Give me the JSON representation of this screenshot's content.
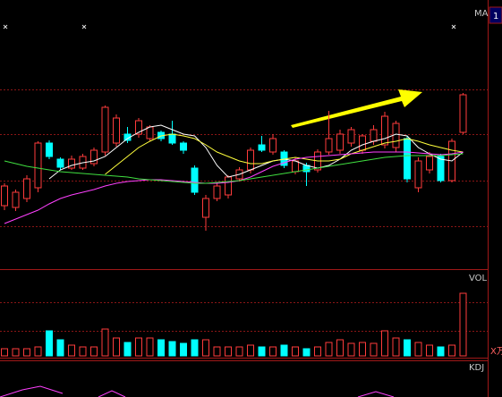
{
  "chart_data": {
    "type": "candlestick",
    "label": "MA",
    "corner_label": "1",
    "up_color": "#ff3b3b",
    "down_color": "#00ffff",
    "ylim": [
      0,
      300
    ],
    "open": [
      70,
      68,
      78,
      90,
      140,
      122,
      112,
      112,
      117,
      130,
      140,
      150,
      150,
      145,
      152,
      150,
      140,
      112,
      57,
      78,
      82,
      100,
      110,
      138,
      130,
      130,
      108,
      115,
      110,
      130,
      132,
      140,
      132,
      142,
      138,
      135,
      145,
      90,
      110,
      125,
      98,
      152
    ],
    "close": [
      92,
      85,
      100,
      140,
      125,
      113,
      122,
      125,
      132,
      180,
      168,
      143,
      165,
      158,
      145,
      140,
      132,
      85,
      78,
      92,
      102,
      110,
      132,
      132,
      145,
      115,
      120,
      108,
      130,
      145,
      150,
      155,
      148,
      155,
      170,
      162,
      100,
      120,
      125,
      98,
      142,
      194
    ],
    "high": [
      95,
      88,
      104,
      142,
      143,
      124,
      126,
      128,
      135,
      182,
      172,
      158,
      168,
      160,
      154,
      165,
      142,
      115,
      82,
      95,
      104,
      113,
      135,
      148,
      150,
      132,
      124,
      118,
      133,
      176,
      155,
      158,
      150,
      160,
      175,
      165,
      148,
      124,
      130,
      128,
      145,
      196
    ],
    "low": [
      65,
      64,
      74,
      85,
      122,
      110,
      110,
      110,
      114,
      126,
      136,
      140,
      146,
      142,
      142,
      138,
      128,
      82,
      42,
      75,
      78,
      97,
      106,
      130,
      127,
      112,
      105,
      92,
      107,
      127,
      128,
      136,
      128,
      138,
      134,
      130,
      96,
      85,
      106,
      96,
      96,
      150
    ],
    "ma_series": [
      {
        "color": "#ffffff",
        "values": [
          null,
          null,
          null,
          null,
          100,
          110,
          115,
          118,
          120,
          125,
          135,
          145,
          152,
          158,
          160,
          155,
          150,
          148,
          135,
          115,
          102,
          105,
          110,
          115,
          120,
          122,
          120,
          115,
          112,
          115,
          122,
          132,
          138,
          142,
          145,
          150,
          148,
          135,
          128,
          122,
          120,
          130
        ]
      },
      {
        "color": "#ffff3c",
        "values": [
          null,
          null,
          null,
          null,
          null,
          null,
          null,
          null,
          null,
          105,
          115,
          125,
          135,
          142,
          148,
          150,
          148,
          145,
          138,
          130,
          125,
          120,
          117,
          117,
          120,
          122,
          124,
          122,
          120,
          120,
          122,
          128,
          132,
          136,
          140,
          142,
          145,
          142,
          138,
          135,
          132,
          130
        ]
      },
      {
        "color": "#ff40ff",
        "values": [
          50,
          55,
          60,
          65,
          72,
          78,
          82,
          85,
          88,
          92,
          95,
          97,
          98,
          99,
          99,
          98,
          97,
          96,
          95,
          95,
          96,
          98,
          102,
          108,
          114,
          118,
          122,
          124,
          125,
          126,
          127,
          128,
          129,
          130,
          130,
          130,
          130,
          129,
          128,
          127,
          128,
          130
        ]
      },
      {
        "color": "#40e040",
        "values": [
          120,
          117,
          114,
          112,
          110,
          108,
          107,
          106,
          105,
          104,
          103,
          102,
          100,
          99,
          98,
          97,
          96,
          95,
          95,
          96,
          97,
          98,
          100,
          102,
          104,
          106,
          108,
          110,
          112,
          114,
          116,
          118,
          120,
          122,
          124,
          125,
          126,
          126,
          126,
          126,
          127,
          128
        ]
      }
    ],
    "volume": {
      "label": "VOL",
      "unit_label": "X万",
      "ylim": [
        0,
        95
      ],
      "values": [
        8,
        8,
        8,
        10,
        28,
        18,
        12,
        10,
        10,
        30,
        20,
        15,
        20,
        20,
        18,
        16,
        14,
        18,
        18,
        10,
        10,
        10,
        12,
        10,
        10,
        12,
        10,
        8,
        10,
        15,
        18,
        14,
        15,
        14,
        28,
        20,
        18,
        15,
        12,
        10,
        12,
        70
      ]
    },
    "kdj_label": "KDJ"
  }
}
